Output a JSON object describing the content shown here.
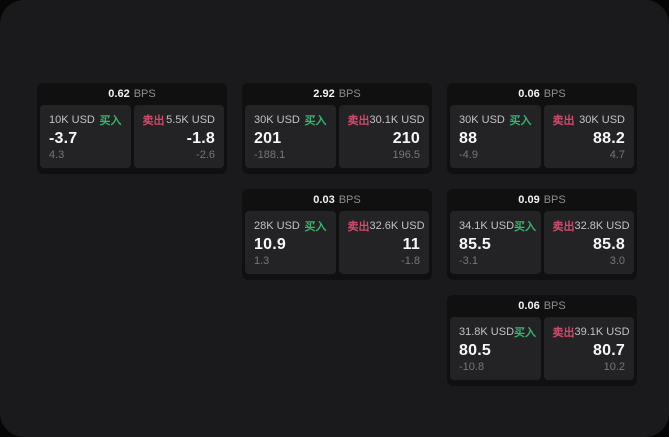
{
  "colors": {
    "page_bg": "#060606",
    "window_bg": "#1a1a1c",
    "card_bg": "#101011",
    "panel_bg": "#232326",
    "text_primary": "#f7f7f7",
    "text_secondary": "#c2c2c4",
    "text_muted": "#767677",
    "buy_green": "#35b56b",
    "sell_red": "#cf4a6b"
  },
  "labels": {
    "buy": "买入",
    "sell": "卖出",
    "bps_unit": "BPS"
  },
  "cards": [
    {
      "bps": "0.62",
      "buy": {
        "size": "10K USD",
        "value": "-3.7",
        "sub": "4.3"
      },
      "sell": {
        "size": "5.5K USD",
        "value": "-1.8",
        "sub": "-2.6"
      }
    },
    {
      "bps": "2.92",
      "buy": {
        "size": "30K USD",
        "value": "201",
        "sub": "-188.1"
      },
      "sell": {
        "size": "30.1K USD",
        "value": "210",
        "sub": "196.5"
      }
    },
    {
      "bps": "0.06",
      "buy": {
        "size": "30K USD",
        "value": "88",
        "sub": "-4.9"
      },
      "sell": {
        "size": "30K USD",
        "value": "88.2",
        "sub": "4.7"
      }
    },
    {
      "bps": "0.03",
      "buy": {
        "size": "28K USD",
        "value": "10.9",
        "sub": "1.3"
      },
      "sell": {
        "size": "32.6K USD",
        "value": "11",
        "sub": "-1.8"
      }
    },
    {
      "bps": "0.09",
      "buy": {
        "size": "34.1K USD",
        "value": "85.5",
        "sub": "-3.1"
      },
      "sell": {
        "size": "32.8K USD",
        "value": "85.8",
        "sub": "3.0"
      }
    },
    {
      "bps": "0.06",
      "buy": {
        "size": "31.8K USD",
        "value": "80.5",
        "sub": "-10.8"
      },
      "sell": {
        "size": "39.1K USD",
        "value": "80.7",
        "sub": "10.2"
      }
    }
  ]
}
